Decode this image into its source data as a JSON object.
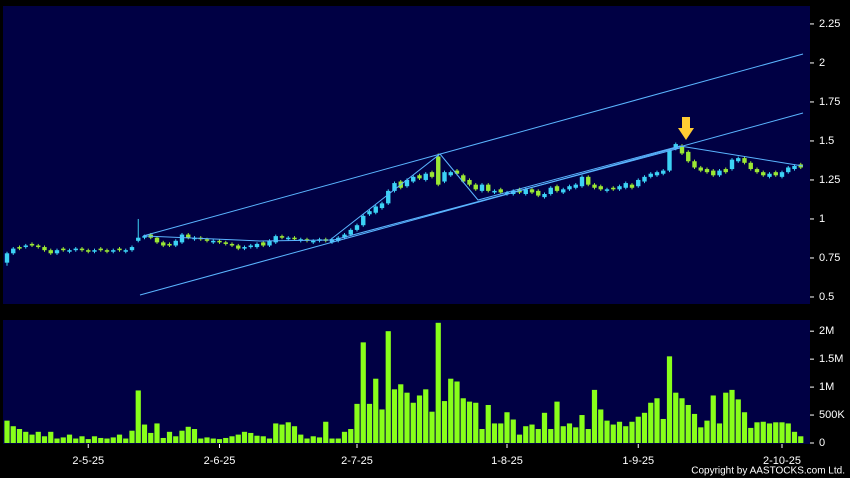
{
  "chart_data": [
    {
      "type": "candlestick",
      "categories": [
        null,
        null,
        null,
        null,
        null,
        null,
        null,
        null,
        null,
        null,
        null,
        null,
        null,
        "2-5-25",
        null,
        null,
        null,
        null,
        null,
        null,
        null,
        null,
        null,
        null,
        null,
        null,
        null,
        null,
        null,
        null,
        null,
        null,
        null,
        null,
        "2-6-25",
        null,
        null,
        null,
        null,
        null,
        null,
        null,
        null,
        null,
        null,
        null,
        null,
        null,
        null,
        null,
        null,
        null,
        null,
        null,
        null,
        null,
        "2-7-25",
        null,
        null,
        null,
        null,
        null,
        null,
        null,
        null,
        null,
        null,
        null,
        null,
        null,
        null,
        null,
        null,
        null,
        null,
        null,
        null,
        null,
        null,
        null,
        "1-8-25",
        null,
        null,
        null,
        null,
        null,
        null,
        null,
        null,
        null,
        null,
        null,
        null,
        null,
        null,
        null,
        null,
        null,
        null,
        null,
        null,
        "1-9-25",
        null,
        null,
        null,
        null,
        null,
        null,
        null,
        null,
        null,
        null,
        null,
        null,
        null,
        null,
        null,
        null,
        null,
        null,
        null,
        null,
        null,
        null,
        "2-10-25",
        null,
        null,
        null
      ],
      "open": [
        0.72,
        0.78,
        0.82,
        0.82,
        0.84,
        0.83,
        0.82,
        0.8,
        0.78,
        0.81,
        0.79,
        0.8,
        0.81,
        0.8,
        0.79,
        0.81,
        0.8,
        0.79,
        0.81,
        0.79,
        0.8,
        0.86,
        0.88,
        0.9,
        0.88,
        0.85,
        0.84,
        0.83,
        0.85,
        0.9,
        0.87,
        0.88,
        0.87,
        0.85,
        0.86,
        0.85,
        0.84,
        0.83,
        0.81,
        0.82,
        0.82,
        0.85,
        0.83,
        0.85,
        0.89,
        0.87,
        0.88,
        0.86,
        0.87,
        0.85,
        0.86,
        0.87,
        0.85,
        0.86,
        0.88,
        0.9,
        0.93,
        0.96,
        1.03,
        1.04,
        1.07,
        1.1,
        1.18,
        1.24,
        1.21,
        1.24,
        1.28,
        1.25,
        1.3,
        1.4,
        1.24,
        1.28,
        1.31,
        1.28,
        1.25,
        1.22,
        1.18,
        1.22,
        1.17,
        1.19,
        1.16,
        1.16,
        1.19,
        1.16,
        1.19,
        1.18,
        1.14,
        1.16,
        1.21,
        1.17,
        1.19,
        1.2,
        1.21,
        1.27,
        1.22,
        1.21,
        1.18,
        1.2,
        1.19,
        1.2,
        1.22,
        1.21,
        1.24,
        1.27,
        1.28,
        1.29,
        1.31,
        1.45,
        1.47,
        1.43,
        1.37,
        1.33,
        1.32,
        1.31,
        1.28,
        1.32,
        1.32,
        1.37,
        1.39,
        1.36,
        1.32,
        1.3,
        1.27,
        1.3,
        1.27,
        1.3,
        1.32,
        1.35
      ],
      "high": [
        0.79,
        0.82,
        0.83,
        0.84,
        0.85,
        0.84,
        0.83,
        0.81,
        0.81,
        0.82,
        0.81,
        0.82,
        0.82,
        0.81,
        0.81,
        0.82,
        0.81,
        0.81,
        0.82,
        0.81,
        0.83,
        1.0,
        0.9,
        0.91,
        0.89,
        0.86,
        0.85,
        0.87,
        0.91,
        0.91,
        0.89,
        0.89,
        0.88,
        0.87,
        0.87,
        0.86,
        0.85,
        0.84,
        0.83,
        0.84,
        0.85,
        0.86,
        0.87,
        0.9,
        0.9,
        0.89,
        0.89,
        0.88,
        0.88,
        0.87,
        0.88,
        0.88,
        0.88,
        0.89,
        0.91,
        0.94,
        0.97,
        1.03,
        1.06,
        1.09,
        1.11,
        1.19,
        1.24,
        1.25,
        1.26,
        1.28,
        1.29,
        1.3,
        1.31,
        1.42,
        1.31,
        1.31,
        1.32,
        1.29,
        1.26,
        1.23,
        1.23,
        1.23,
        1.19,
        1.2,
        1.18,
        1.19,
        1.2,
        1.2,
        1.2,
        1.19,
        1.17,
        1.21,
        1.22,
        1.2,
        1.22,
        1.23,
        1.28,
        1.28,
        1.23,
        1.22,
        1.2,
        1.21,
        1.22,
        1.24,
        1.23,
        1.26,
        1.28,
        1.3,
        1.31,
        1.32,
        1.45,
        1.49,
        1.48,
        1.44,
        1.38,
        1.34,
        1.33,
        1.32,
        1.32,
        1.33,
        1.39,
        1.4,
        1.4,
        1.37,
        1.33,
        1.31,
        1.3,
        1.31,
        1.31,
        1.34,
        1.35,
        1.36
      ],
      "low": [
        0.7,
        0.77,
        0.8,
        0.81,
        0.82,
        0.81,
        0.79,
        0.77,
        0.77,
        0.79,
        0.78,
        0.79,
        0.79,
        0.78,
        0.78,
        0.79,
        0.78,
        0.78,
        0.79,
        0.78,
        0.79,
        0.85,
        0.87,
        0.87,
        0.84,
        0.82,
        0.82,
        0.82,
        0.84,
        0.87,
        0.86,
        0.86,
        0.85,
        0.84,
        0.84,
        0.83,
        0.82,
        0.8,
        0.8,
        0.81,
        0.81,
        0.82,
        0.82,
        0.84,
        0.87,
        0.86,
        0.86,
        0.85,
        0.85,
        0.84,
        0.85,
        0.85,
        0.84,
        0.85,
        0.87,
        0.89,
        0.92,
        0.95,
        1.02,
        1.03,
        1.06,
        1.09,
        1.17,
        1.19,
        1.2,
        1.23,
        1.25,
        1.24,
        1.26,
        1.21,
        1.23,
        1.27,
        1.28,
        1.23,
        1.21,
        1.18,
        1.17,
        1.17,
        1.16,
        1.16,
        1.15,
        1.15,
        1.16,
        1.15,
        1.16,
        1.14,
        1.13,
        1.15,
        1.17,
        1.16,
        1.18,
        1.19,
        1.2,
        1.21,
        1.19,
        1.18,
        1.17,
        1.18,
        1.18,
        1.19,
        1.19,
        1.2,
        1.23,
        1.26,
        1.27,
        1.28,
        1.3,
        1.44,
        1.41,
        1.36,
        1.32,
        1.3,
        1.29,
        1.27,
        1.27,
        1.29,
        1.31,
        1.36,
        1.35,
        1.31,
        1.29,
        1.27,
        1.26,
        1.27,
        1.26,
        1.29,
        1.31,
        1.32
      ],
      "close": [
        0.78,
        0.81,
        0.81,
        0.83,
        0.83,
        0.82,
        0.8,
        0.78,
        0.8,
        0.8,
        0.8,
        0.81,
        0.8,
        0.79,
        0.8,
        0.8,
        0.79,
        0.8,
        0.8,
        0.8,
        0.82,
        0.88,
        0.89,
        0.88,
        0.85,
        0.83,
        0.83,
        0.86,
        0.9,
        0.88,
        0.88,
        0.87,
        0.86,
        0.86,
        0.85,
        0.84,
        0.83,
        0.81,
        0.82,
        0.83,
        0.84,
        0.83,
        0.86,
        0.89,
        0.88,
        0.88,
        0.87,
        0.87,
        0.86,
        0.86,
        0.87,
        0.86,
        0.87,
        0.88,
        0.9,
        0.93,
        0.96,
        1.02,
        1.05,
        1.08,
        1.1,
        1.18,
        1.23,
        1.2,
        1.25,
        1.27,
        1.26,
        1.29,
        1.27,
        1.22,
        1.3,
        1.3,
        1.29,
        1.24,
        1.22,
        1.19,
        1.22,
        1.18,
        1.18,
        1.17,
        1.17,
        1.18,
        1.17,
        1.19,
        1.17,
        1.15,
        1.16,
        1.2,
        1.18,
        1.19,
        1.21,
        1.22,
        1.27,
        1.22,
        1.2,
        1.19,
        1.19,
        1.19,
        1.21,
        1.23,
        1.2,
        1.25,
        1.27,
        1.29,
        1.3,
        1.31,
        1.44,
        1.48,
        1.42,
        1.37,
        1.33,
        1.31,
        1.3,
        1.28,
        1.31,
        1.3,
        1.38,
        1.39,
        1.36,
        1.32,
        1.3,
        1.28,
        1.29,
        1.28,
        1.3,
        1.33,
        1.34,
        1.33
      ],
      "up_color": "#3cd2f5",
      "down_color": "#9be834",
      "ylim": [
        0.455,
        2.365
      ],
      "yticks": [
        0.5,
        0.75,
        1,
        1.25,
        1.5,
        1.75,
        2,
        2.25
      ]
    },
    {
      "type": "bar",
      "values": [
        400000,
        300000,
        250000,
        200000,
        150000,
        200000,
        120000,
        200000,
        80000,
        100000,
        150000,
        80000,
        120000,
        70000,
        120000,
        90000,
        80000,
        100000,
        150000,
        80000,
        220000,
        940000,
        330000,
        180000,
        350000,
        90000,
        200000,
        120000,
        220000,
        290000,
        250000,
        80000,
        100000,
        80000,
        70000,
        90000,
        120000,
        150000,
        200000,
        180000,
        130000,
        120000,
        80000,
        350000,
        330000,
        370000,
        300000,
        150000,
        80000,
        120000,
        100000,
        380000,
        80000,
        80000,
        200000,
        250000,
        700000,
        1800000,
        700000,
        1150000,
        600000,
        2000000,
        960000,
        1050000,
        900000,
        720000,
        850000,
        960000,
        560000,
        2150000,
        750000,
        1150000,
        1100000,
        800000,
        740000,
        720000,
        250000,
        680000,
        350000,
        350000,
        550000,
        420000,
        150000,
        300000,
        330000,
        250000,
        540000,
        250000,
        740000,
        300000,
        350000,
        280000,
        500000,
        250000,
        950000,
        600000,
        400000,
        330000,
        380000,
        300000,
        380000,
        470000,
        540000,
        720000,
        800000,
        430000,
        1550000,
        900000,
        800000,
        680000,
        520000,
        280000,
        400000,
        850000,
        350000,
        900000,
        950000,
        780000,
        550000,
        270000,
        370000,
        380000,
        350000,
        370000,
        370000,
        350000,
        200000,
        120000
      ],
      "color": "#88ff1a",
      "ylim": [
        0,
        2200000
      ],
      "yticks": [
        0,
        {
          "value": 500000,
          "label": "500K"
        },
        {
          "value": 1000000,
          "label": "1M"
        },
        {
          "value": 1500000,
          "label": "1.5M"
        },
        {
          "value": 2000000,
          "label": "2M"
        }
      ]
    }
  ],
  "footer": "Copyright by AASTOCKS.com Ltd."
}
